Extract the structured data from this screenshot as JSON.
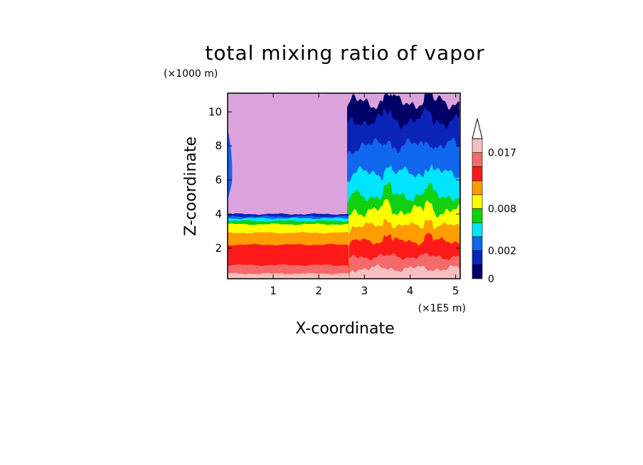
{
  "chart_data": {
    "type": "heatmap",
    "title": "total mixing ratio of vapor",
    "xlabel": "X-coordinate",
    "ylabel": "Z-coordinate",
    "x_unit": "(×1E5 m)",
    "y_unit": "(×1000 m)",
    "xlim": [
      0,
      5.1
    ],
    "ylim": [
      0.2,
      11.1
    ],
    "xticks": [
      1,
      2,
      3,
      4,
      5
    ],
    "yticks": [
      2,
      4,
      6,
      8,
      10
    ],
    "levels": [
      0,
      0.001,
      0.002,
      0.004,
      0.006,
      0.008,
      0.01,
      0.012,
      0.014,
      0.017,
      0.019
    ],
    "colorbar_labels": [
      "0",
      "0.002",
      "0.008",
      "0.017"
    ],
    "colors": [
      "#000066",
      "#0a24b8",
      "#1166ee",
      "#00e5ff",
      "#10d010",
      "#ffff00",
      "#ff9c00",
      "#ff1a1a",
      "#f46a6a",
      "#f7c0c0"
    ],
    "background_color": "#dba2dd",
    "regions": [
      {
        "name": "dry upper region (x < 2.6)",
        "top_z": 4.0,
        "bands_bottom_to_top": [
          0.5,
          1.0,
          2.2,
          2.9,
          3.4,
          3.6,
          3.75,
          3.85,
          4.0
        ]
      },
      {
        "name": "moist convective region (x > 2.6)",
        "top_z": 10.6,
        "bands_bottom_to_top": [
          0.8,
          1.5,
          2.4,
          3.3,
          4.2,
          5.1,
          6.4,
          8.0,
          9.5,
          10.6
        ]
      }
    ]
  }
}
